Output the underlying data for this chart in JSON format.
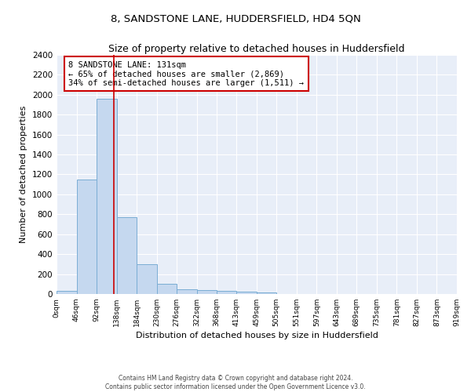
{
  "title": "8, SANDSTONE LANE, HUDDERSFIELD, HD4 5QN",
  "subtitle": "Size of property relative to detached houses in Huddersfield",
  "xlabel": "Distribution of detached houses by size in Huddersfield",
  "ylabel": "Number of detached properties",
  "footer_line1": "Contains HM Land Registry data © Crown copyright and database right 2024.",
  "footer_line2": "Contains public sector information licensed under the Open Government Licence v3.0.",
  "bin_edges": [
    0,
    46,
    92,
    138,
    184,
    230,
    276,
    322,
    368,
    413,
    459,
    505,
    551,
    597,
    643,
    689,
    735,
    781,
    827,
    873,
    919
  ],
  "bar_values": [
    35,
    1145,
    1960,
    770,
    300,
    100,
    48,
    40,
    30,
    20,
    18,
    0,
    0,
    0,
    0,
    0,
    0,
    0,
    0,
    0
  ],
  "bar_color": "#c5d8ef",
  "bar_edge_color": "#7aadd4",
  "property_size": 131,
  "property_line_color": "#cc0000",
  "ylim": [
    0,
    2400
  ],
  "yticks": [
    0,
    200,
    400,
    600,
    800,
    1000,
    1200,
    1400,
    1600,
    1800,
    2000,
    2200,
    2400
  ],
  "annotation_line1": "8 SANDSTONE LANE: 131sqm",
  "annotation_line2": "← 65% of detached houses are smaller (2,869)",
  "annotation_line3": "34% of semi-detached houses are larger (1,511) →",
  "annotation_box_color": "#ffffff",
  "annotation_box_edge_color": "#cc0000",
  "background_color": "#ffffff",
  "plot_bg_color": "#e8eef8",
  "grid_color": "#ffffff"
}
